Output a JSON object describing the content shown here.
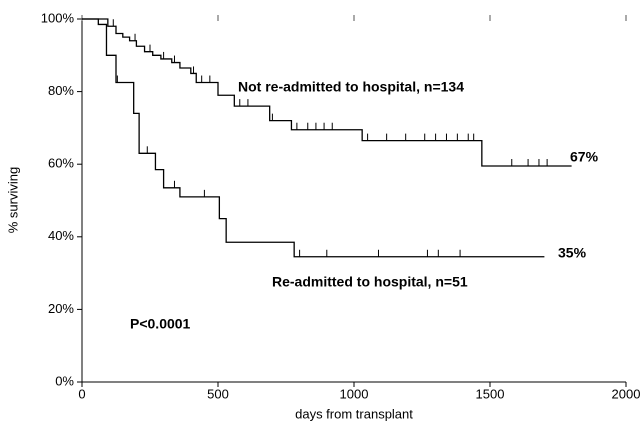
{
  "chart_data": {
    "type": "step",
    "x_label": "days from transplant",
    "y_label": "% surviving",
    "annotations": [
      "Not re-admitted to hospital, n=134",
      "67%",
      "35%",
      "Re-admitted to hospital, n=51",
      "P<0.0001"
    ],
    "xlim": [
      0,
      2000
    ],
    "xticks": [
      0,
      500,
      1000,
      1500,
      2000
    ],
    "ylim": [
      0,
      100
    ],
    "yticks": [
      {
        "value": 0,
        "label": "0%"
      },
      {
        "value": 20,
        "label": "20%"
      },
      {
        "value": 40,
        "label": "40%"
      },
      {
        "value": 60,
        "label": "60%"
      },
      {
        "value": 80,
        "label": "80%"
      },
      {
        "value": 100,
        "label": "100%"
      }
    ],
    "series": [
      {
        "color": "#000000",
        "x": [
          0,
          95,
          125,
          150,
          175,
          200,
          230,
          260,
          290,
          330,
          360,
          400,
          420,
          500,
          560,
          690,
          770,
          1030,
          1470,
          1800
        ],
        "values": [
          100,
          98,
          96,
          95,
          94,
          92.5,
          91,
          90,
          89,
          88,
          86.5,
          85,
          82.5,
          79,
          76,
          72,
          69.5,
          66.5,
          59.5,
          59.5
        ],
        "censor_x": [
          115,
          195,
          250,
          300,
          340,
          410,
          440,
          470,
          580,
          610,
          700,
          790,
          830,
          860,
          890,
          920,
          1050,
          1120,
          1190,
          1260,
          1300,
          1340,
          1380,
          1420,
          1440,
          1580,
          1640,
          1680,
          1710
        ],
        "censor_values": [
          98,
          94,
          91,
          89,
          88,
          85,
          82.5,
          82.5,
          76,
          76,
          72,
          69.5,
          69.5,
          69.5,
          69.5,
          69.5,
          66.5,
          66.5,
          66.5,
          66.5,
          66.5,
          66.5,
          66.5,
          66.5,
          66.5,
          59.5,
          59.5,
          59.5,
          59.5
        ]
      },
      {
        "color": "#000000",
        "x": [
          0,
          60,
          90,
          125,
          190,
          210,
          270,
          300,
          360,
          505,
          530,
          780,
          1700
        ],
        "values": [
          100,
          98.5,
          90,
          82.5,
          74,
          63,
          58.5,
          53.5,
          51,
          45,
          38.5,
          34.5,
          34.5
        ],
        "censor_x": [
          130,
          240,
          340,
          450,
          800,
          900,
          1090,
          1270,
          1310,
          1390
        ],
        "censor_values": [
          82.5,
          63,
          53.5,
          51,
          34.5,
          34.5,
          34.5,
          34.5,
          34.5,
          34.5
        ]
      }
    ]
  }
}
